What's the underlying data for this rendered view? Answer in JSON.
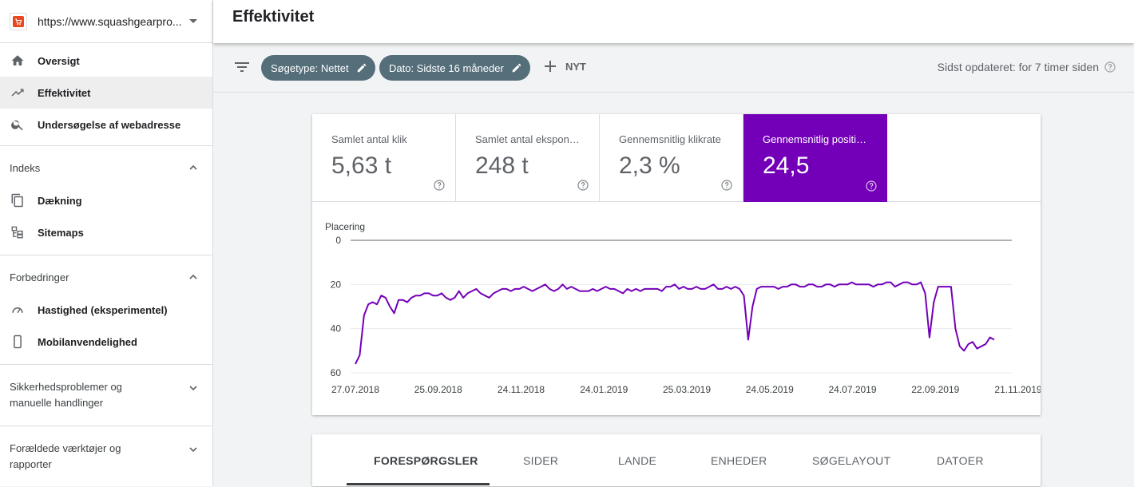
{
  "property": {
    "url": "https://www.squashgearpro...."
  },
  "nav": {
    "items": [
      {
        "label": "Oversigt",
        "icon": "home-icon"
      },
      {
        "label": "Effektivitet",
        "icon": "trending-up-icon"
      },
      {
        "label": "Undersøgelse af webadresse",
        "icon": "search-icon"
      }
    ],
    "sections": [
      {
        "title": "Indeks",
        "items": [
          "Dækning",
          "Sitemaps"
        ]
      },
      {
        "title": "Forbedringer",
        "items": [
          "Hastighed (eksperimentel)",
          "Mobilanvendelighed"
        ]
      },
      {
        "title_line1": "Sikkerhedsproblemer og",
        "title_line2": "manuelle handlinger"
      },
      {
        "title_line1": "Forældede værktøjer og",
        "title_line2": "rapporter"
      }
    ]
  },
  "header": {
    "title": "Effektivitet"
  },
  "filters": {
    "chip1": "Søgetype: Nettet",
    "chip2": "Dato: Sidste 16 måneder",
    "new_label": "NYT",
    "updated": "Sidst opdateret: for 7 timer siden"
  },
  "metrics": [
    {
      "label": "Samlet antal klik",
      "value": "5,63 t"
    },
    {
      "label": "Samlet antal ekspon…",
      "value": "248 t"
    },
    {
      "label": "Gennemsnitlig klikrate",
      "value": "2,3 %"
    },
    {
      "label": "Gennemsnitlig positi…",
      "value": "24,5",
      "selected": true
    }
  ],
  "colors": {
    "accent": "#7300b8",
    "chip": "#546e7a",
    "brand_icon": "#e8471f"
  },
  "chart_data": {
    "type": "line",
    "ylabel": "Placering",
    "y_inverted": true,
    "ylim": [
      0,
      60
    ],
    "yticks": [
      "0",
      "20",
      "40",
      "60"
    ],
    "xticks": [
      "27.07.2018",
      "25.09.2018",
      "24.11.2018",
      "24.01.2019",
      "25.03.2019",
      "24.05.2019",
      "24.07.2019",
      "22.09.2019",
      "21.11.2019"
    ],
    "series": [
      {
        "color": "#7300b8",
        "values": [
          56,
          52,
          34,
          29,
          28,
          29,
          25,
          26,
          30,
          33,
          27,
          27,
          28,
          26,
          25,
          25,
          24,
          24,
          25,
          25,
          24,
          26,
          27,
          26,
          23,
          26,
          24,
          23,
          22,
          24,
          25,
          26,
          24,
          23,
          22,
          22,
          23,
          22,
          22,
          21,
          22,
          23,
          22,
          21,
          20,
          22,
          23,
          22,
          20,
          22,
          21,
          22,
          23,
          23,
          23,
          22,
          23,
          22,
          21,
          22,
          22,
          23,
          24,
          22,
          23,
          22,
          23,
          22,
          22,
          22,
          22,
          23,
          21,
          21,
          20,
          22,
          21,
          22,
          22,
          21,
          22,
          22,
          21,
          20,
          22,
          22,
          21,
          22,
          21,
          22,
          25,
          45,
          30,
          22,
          21,
          21,
          21,
          21,
          22,
          21,
          21,
          20,
          20,
          21,
          21,
          20,
          20,
          21,
          21,
          20,
          20,
          21,
          20,
          20,
          20,
          19,
          20,
          20,
          20,
          20,
          21,
          20,
          20,
          19,
          19,
          21,
          20,
          19,
          19,
          20,
          20,
          19,
          24,
          44,
          28,
          21,
          21,
          21,
          21,
          40,
          48,
          50,
          47,
          46,
          49,
          48,
          47,
          44,
          45
        ]
      }
    ]
  },
  "tabs": [
    "FORESPØRGSLER",
    "SIDER",
    "LANDE",
    "ENHEDER",
    "SØGELAYOUT",
    "DATOER"
  ]
}
